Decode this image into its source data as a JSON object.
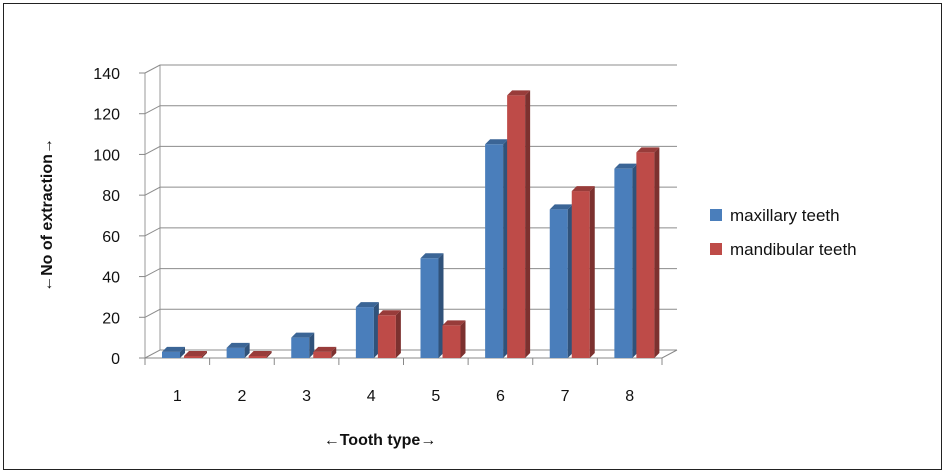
{
  "chart_data": {
    "type": "bar",
    "title": "",
    "xlabel": "←Tooth type→",
    "ylabel": "←No of extraction→",
    "categories": [
      "1",
      "2",
      "3",
      "4",
      "5",
      "6",
      "7",
      "8"
    ],
    "ylim": [
      0,
      140
    ],
    "yticks": [
      "0",
      "20",
      "40",
      "60",
      "80",
      "100",
      "120",
      "140"
    ],
    "grid": true,
    "legend_position": "right",
    "series": [
      {
        "name": "maxillary teeth",
        "color": "#4a7ebb",
        "values": [
          3,
          5,
          10,
          25,
          49,
          105,
          73,
          93
        ]
      },
      {
        "name": "mandibular teeth",
        "color": "#be4b48",
        "values": [
          1,
          1,
          3,
          21,
          16,
          129,
          82,
          101
        ]
      }
    ]
  }
}
